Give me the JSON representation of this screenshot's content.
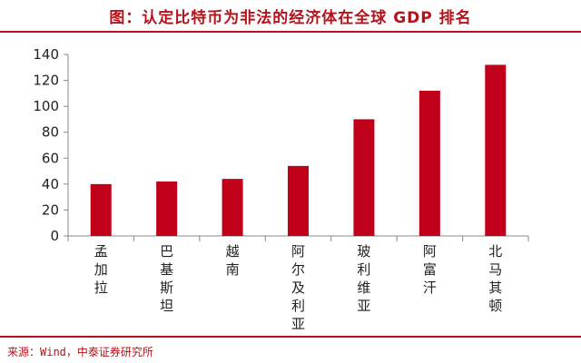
{
  "header": {
    "title": "图：认定比特币为非法的经济体在全球 GDP 排名"
  },
  "footer": {
    "source": "来源：Wind，中泰证券研究所"
  },
  "chart_data": {
    "type": "bar",
    "title": "",
    "xlabel": "",
    "ylabel": "",
    "categories": [
      "孟加拉",
      "巴基斯坦",
      "越南",
      "阿尔及利亚",
      "玻利维亚",
      "阿富汗",
      "北马其顿"
    ],
    "values": [
      40,
      42,
      44,
      54,
      90,
      112,
      132
    ],
    "ylim": [
      0,
      140
    ],
    "yticks": [
      0,
      20,
      40,
      60,
      80,
      100,
      120,
      140
    ],
    "bar_color": "#c0001a",
    "grid": false,
    "legend": "none"
  }
}
